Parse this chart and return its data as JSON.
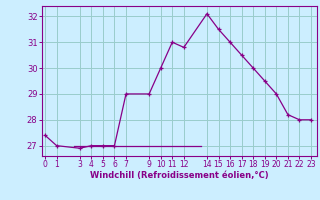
{
  "x": [
    0,
    1,
    3,
    4,
    5,
    6,
    7,
    9,
    10,
    11,
    12,
    14,
    15,
    16,
    17,
    18,
    19,
    20,
    21,
    22,
    23
  ],
  "y": [
    27.4,
    27.0,
    26.9,
    27.0,
    27.0,
    27.0,
    29.0,
    29.0,
    30.0,
    31.0,
    30.8,
    32.1,
    31.5,
    31.0,
    30.5,
    30.0,
    29.5,
    29.0,
    28.2,
    28.0,
    28.0
  ],
  "line_color": "#880088",
  "marker_color": "#880088",
  "bg_color": "#cceeff",
  "grid_color": "#99cccc",
  "axis_color": "#880088",
  "tick_color": "#880088",
  "xlabel": "Windchill (Refroidissement éolien,°C)",
  "xticks": [
    0,
    1,
    3,
    4,
    5,
    6,
    7,
    9,
    10,
    11,
    12,
    14,
    15,
    16,
    17,
    18,
    19,
    20,
    21,
    22,
    23
  ],
  "yticks": [
    27,
    28,
    29,
    30,
    31,
    32
  ],
  "ylim": [
    26.6,
    32.4
  ],
  "xlim": [
    -0.3,
    23.5
  ],
  "hline_y": 27.0,
  "hline_x_start": 2.5,
  "hline_x_end": 13.5
}
